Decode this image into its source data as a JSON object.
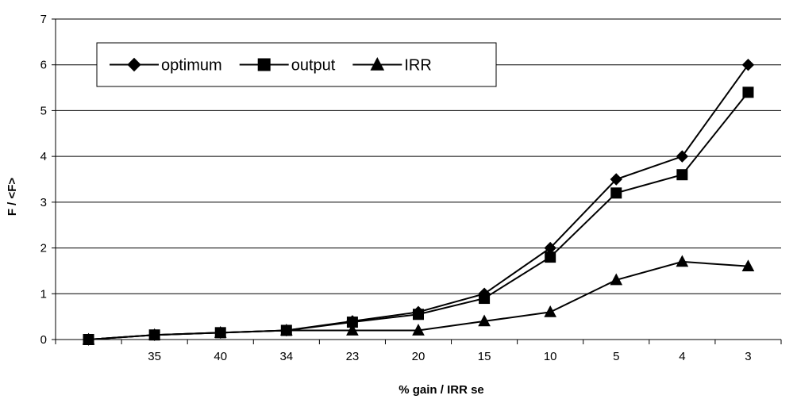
{
  "chart_data": {
    "type": "line",
    "categories": [
      "",
      "35",
      "40",
      "34",
      "23",
      "20",
      "15",
      "10",
      "5",
      "4",
      "3"
    ],
    "series": [
      {
        "name": "optimum",
        "marker": "diamond",
        "values": [
          0,
          0.1,
          0.15,
          0.2,
          0.4,
          0.6,
          1.0,
          2.0,
          3.5,
          4.0,
          6.0
        ]
      },
      {
        "name": "output",
        "marker": "square",
        "values": [
          0,
          0.1,
          0.15,
          0.2,
          0.38,
          0.55,
          0.9,
          1.8,
          3.2,
          3.6,
          5.4
        ]
      },
      {
        "name": "IRR",
        "marker": "triangle",
        "values": [
          0,
          0.1,
          0.15,
          0.2,
          0.2,
          0.2,
          0.4,
          0.6,
          1.3,
          1.7,
          1.6
        ]
      }
    ],
    "xlabel": "% gain / IRR se",
    "ylabel": "F / <F>",
    "ylim": [
      0,
      7
    ],
    "yticks": [
      0,
      1,
      2,
      3,
      4,
      5,
      6,
      7
    ],
    "grid": true,
    "legend_position": "top-left",
    "line_color": "#000000"
  }
}
